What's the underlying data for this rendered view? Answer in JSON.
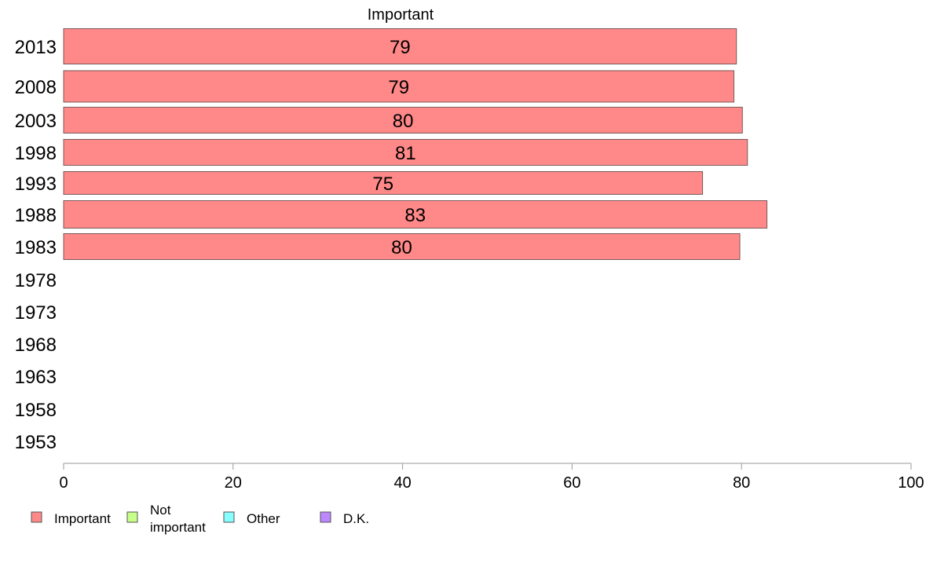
{
  "chart_data": {
    "type": "bar",
    "orientation": "horizontal",
    "stacked": true,
    "title": "Important",
    "categories": [
      "2013",
      "2008",
      "2003",
      "1998",
      "1993",
      "1988",
      "1983",
      "1978",
      "1973",
      "1968",
      "1963",
      "1958",
      "1953"
    ],
    "series": [
      {
        "name": "Important",
        "color": "#ff8888",
        "values": [
          79.4,
          79.1,
          80.1,
          80.7,
          75.4,
          83.0,
          79.8,
          null,
          null,
          null,
          null,
          null,
          null
        ]
      },
      {
        "name": "Not important",
        "color": "#c8ff88",
        "values": [
          null,
          null,
          null,
          null,
          null,
          null,
          null,
          null,
          null,
          null,
          null,
          null,
          null
        ]
      },
      {
        "name": "Other",
        "color": "#88ffff",
        "values": [
          null,
          null,
          null,
          null,
          null,
          null,
          null,
          null,
          null,
          null,
          null,
          null,
          null
        ]
      },
      {
        "name": "D.K.",
        "color": "#bb88ff",
        "values": [
          null,
          null,
          null,
          null,
          null,
          null,
          null,
          null,
          null,
          null,
          null,
          null,
          null
        ]
      }
    ],
    "data_labels": [
      "79",
      "79",
      "80",
      "81",
      "75",
      "83",
      "80",
      "",
      "",
      "",
      "",
      "",
      ""
    ],
    "xlim": [
      0,
      100
    ],
    "xticks": [
      "0",
      "20",
      "40",
      "60",
      "80",
      "100"
    ],
    "grid": false,
    "legend_position": "bottom-left"
  }
}
